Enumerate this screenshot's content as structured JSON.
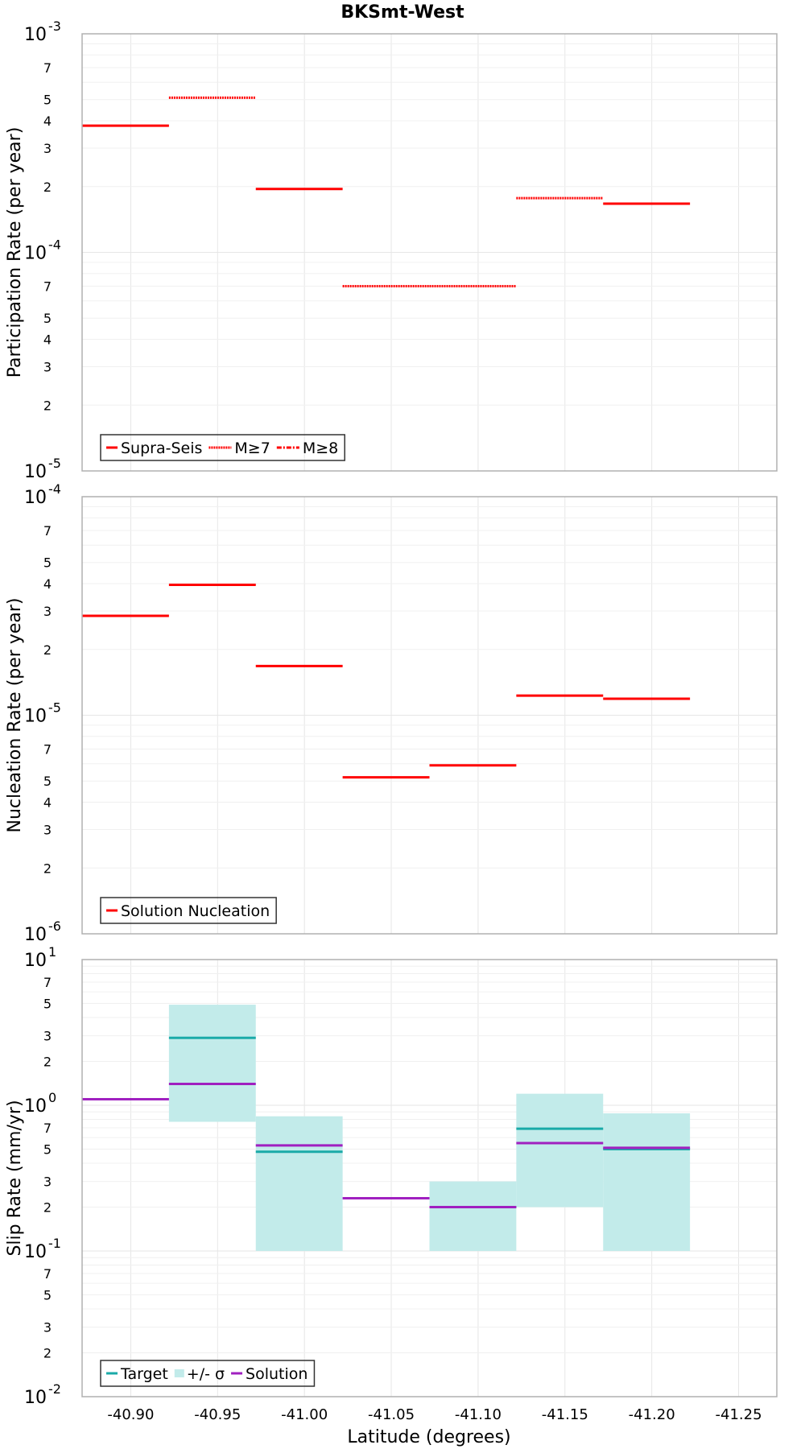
{
  "title": "BKSmt-West",
  "xlabel": "Latitude (degrees)",
  "x_ticks": [
    "-40.90",
    "-40.95",
    "-41.00",
    "-41.05",
    "-41.10",
    "-41.15",
    "-41.20",
    "-41.25"
  ],
  "colors": {
    "red": "#ff0000",
    "cyan": "#1aaaa8",
    "cyanFill": "#c2ebea",
    "purple": "#a020c0"
  },
  "chart_data": [
    {
      "type": "line",
      "name": "participation",
      "ylabel": "Participation Rate (per year)",
      "yscale": "log",
      "ylim": [
        1e-05,
        0.001
      ],
      "xlim": [
        -40.872,
        -41.272
      ],
      "decade_labels": [
        {
          "base": "10",
          "exp": "-5"
        },
        {
          "base": "10",
          "exp": "-4"
        },
        {
          "base": "10",
          "exp": "-3"
        }
      ],
      "minor_labels": [
        "2",
        "3",
        "4",
        "5",
        "7"
      ],
      "legend": [
        {
          "label": "Supra-Seis",
          "style": "solid"
        },
        {
          "label": "M≥7",
          "style": "dotted"
        },
        {
          "label": "M≥8",
          "style": "dashdot"
        }
      ],
      "segments": [
        {
          "x0": -40.872,
          "x1": -40.922,
          "y": 0.00038,
          "style": "solid"
        },
        {
          "x0": -40.922,
          "x1": -40.972,
          "y": 0.00051,
          "style": "dotted"
        },
        {
          "x0": -40.972,
          "x1": -41.022,
          "y": 0.000195,
          "style": "solid"
        },
        {
          "x0": -41.022,
          "x1": -41.072,
          "y": 7e-05,
          "style": "dotted"
        },
        {
          "x0": -41.072,
          "x1": -41.122,
          "y": 7e-05,
          "style": "dotted"
        },
        {
          "x0": -41.122,
          "x1": -41.172,
          "y": 0.000177,
          "style": "dotted"
        },
        {
          "x0": -41.172,
          "x1": -41.222,
          "y": 0.000167,
          "style": "solid"
        }
      ]
    },
    {
      "type": "line",
      "name": "nucleation",
      "ylabel": "Nucleation Rate (per year)",
      "yscale": "log",
      "ylim": [
        1e-06,
        0.0001
      ],
      "xlim": [
        -40.872,
        -41.272
      ],
      "decade_labels": [
        {
          "base": "10",
          "exp": "-6"
        },
        {
          "base": "10",
          "exp": "-5"
        },
        {
          "base": "10",
          "exp": "-4"
        }
      ],
      "minor_labels": [
        "2",
        "3",
        "4",
        "5",
        "7"
      ],
      "legend": [
        {
          "label": "Solution Nucleation",
          "style": "solid"
        }
      ],
      "segments": [
        {
          "x0": -40.872,
          "x1": -40.922,
          "y": 2.85e-05,
          "style": "solid"
        },
        {
          "x0": -40.922,
          "x1": -40.972,
          "y": 3.95e-05,
          "style": "solid"
        },
        {
          "x0": -40.972,
          "x1": -41.022,
          "y": 1.68e-05,
          "style": "solid"
        },
        {
          "x0": -41.022,
          "x1": -41.072,
          "y": 5.2e-06,
          "style": "solid"
        },
        {
          "x0": -41.072,
          "x1": -41.122,
          "y": 5.9e-06,
          "style": "solid"
        },
        {
          "x0": -41.122,
          "x1": -41.172,
          "y": 1.23e-05,
          "style": "solid"
        },
        {
          "x0": -41.172,
          "x1": -41.222,
          "y": 1.19e-05,
          "style": "solid"
        }
      ]
    },
    {
      "type": "line",
      "name": "slip",
      "ylabel": "Slip Rate (mm/yr)",
      "yscale": "log",
      "ylim": [
        0.01,
        10
      ],
      "xlim": [
        -40.872,
        -41.272
      ],
      "decade_labels": [
        {
          "base": "10",
          "exp": "-2"
        },
        {
          "base": "10",
          "exp": "-1"
        },
        {
          "base": "10",
          "exp": "0"
        },
        {
          "base": "10",
          "exp": "1"
        }
      ],
      "minor_labels": [
        "2",
        "3",
        "5",
        "7"
      ],
      "legend": [
        {
          "label": "Target",
          "style": "line",
          "color": "cyan"
        },
        {
          "label": "+/- σ",
          "style": "box",
          "color": "cyanFill"
        },
        {
          "label": "Solution",
          "style": "line",
          "color": "purple"
        }
      ],
      "sigma_bands": [
        {
          "x0": -40.922,
          "x1": -40.972,
          "lo": 0.77,
          "hi": 4.9
        },
        {
          "x0": -40.972,
          "x1": -41.022,
          "lo": 0.1,
          "hi": 0.84
        },
        {
          "x0": -41.072,
          "x1": -41.122,
          "lo": 0.1,
          "hi": 0.3
        },
        {
          "x0": -41.122,
          "x1": -41.172,
          "lo": 0.2,
          "hi": 1.2
        },
        {
          "x0": -41.172,
          "x1": -41.222,
          "lo": 0.1,
          "hi": 0.88
        }
      ],
      "target": [
        {
          "x0": -40.922,
          "x1": -40.972,
          "y": 2.9
        },
        {
          "x0": -40.972,
          "x1": -41.022,
          "y": 0.48
        },
        {
          "x0": -41.072,
          "x1": -41.122,
          "y": 0.2
        },
        {
          "x0": -41.122,
          "x1": -41.172,
          "y": 0.69
        },
        {
          "x0": -41.172,
          "x1": -41.222,
          "y": 0.5
        }
      ],
      "solution": [
        {
          "x0": -40.872,
          "x1": -40.922,
          "y": 1.1
        },
        {
          "x0": -40.922,
          "x1": -40.972,
          "y": 1.4
        },
        {
          "x0": -40.972,
          "x1": -41.022,
          "y": 0.53
        },
        {
          "x0": -41.022,
          "x1": -41.072,
          "y": 0.23
        },
        {
          "x0": -41.072,
          "x1": -41.122,
          "y": 0.2
        },
        {
          "x0": -41.122,
          "x1": -41.172,
          "y": 0.55
        },
        {
          "x0": -41.172,
          "x1": -41.222,
          "y": 0.51
        }
      ]
    }
  ]
}
